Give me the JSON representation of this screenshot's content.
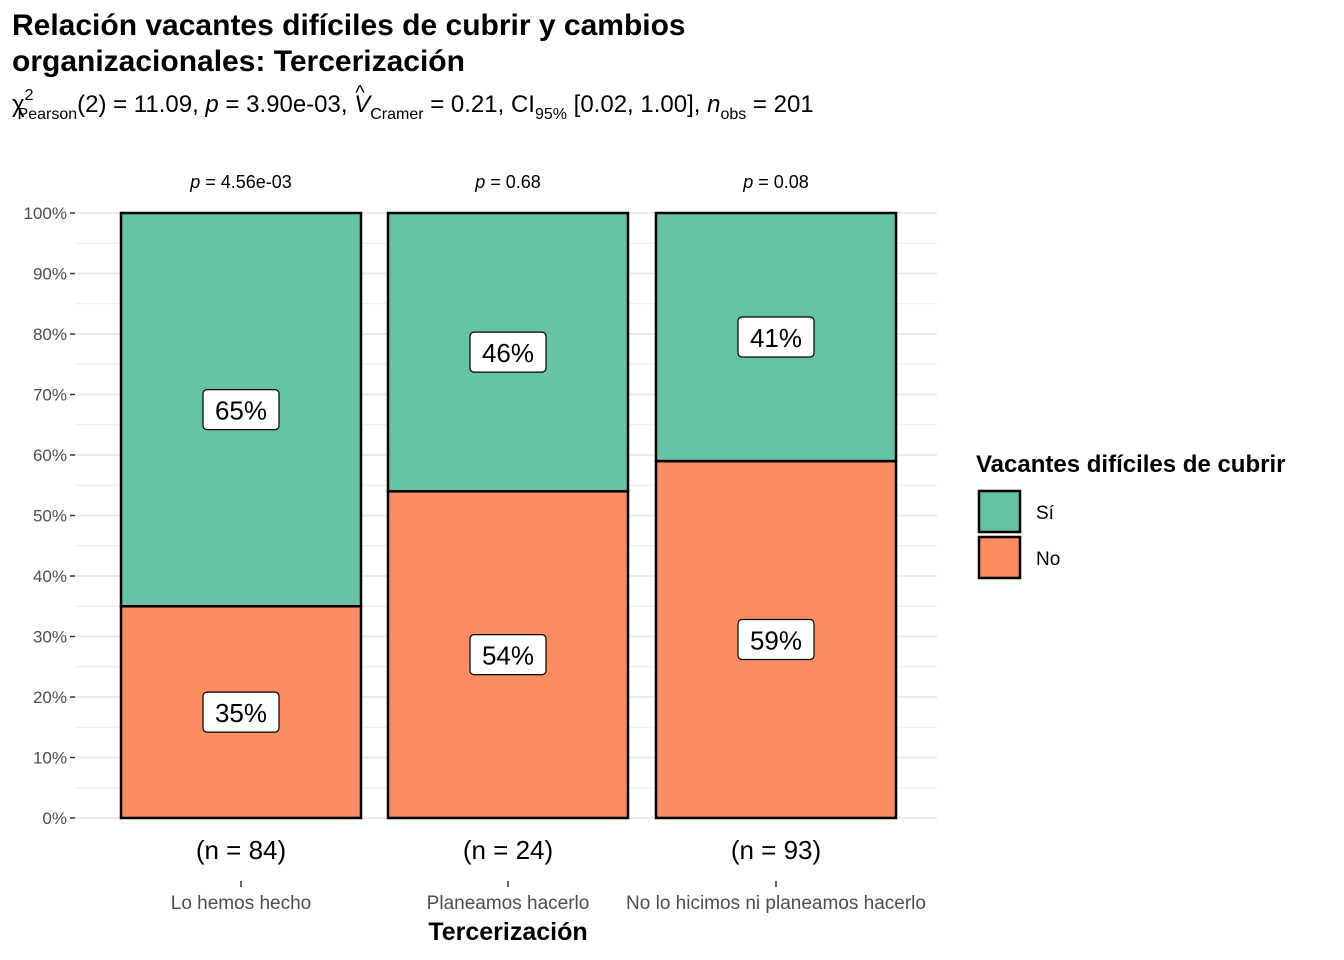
{
  "title": "Relación vacantes difíciles de cubrir y cambios organizacionales: Tercerización",
  "subtitle": {
    "chi": "χ",
    "chi_sup": "2",
    "chi_sub": "Pearson",
    "df": "(2) = 11.09, ",
    "p_label": "p",
    "p_value": " = 3.90e-03, ",
    "v_label": "V",
    "v_hat": "^",
    "v_sub": "Cramer",
    "v_value": " = 0.21, CI",
    "ci_sub": "95%",
    "ci_value": " [0.02, 1.00], ",
    "n_label": "n",
    "n_sub": "obs",
    "n_value": " = 201"
  },
  "colors": {
    "si": "#66c2a5",
    "no": "#fc8d62",
    "grid": "#ebebeb"
  },
  "chart_data": {
    "type": "bar",
    "stacked": true,
    "categories": [
      "Lo hemos hecho",
      "Planeamos hacerlo",
      "No lo hicimos ni planeamos hacerlo"
    ],
    "series": [
      {
        "name": "Sí",
        "values": [
          65,
          46,
          41
        ],
        "labels": [
          "65%",
          "46%",
          "41%"
        ]
      },
      {
        "name": "No",
        "values": [
          35,
          54,
          59
        ],
        "labels": [
          "35%",
          "54%",
          "59%"
        ]
      }
    ],
    "counts": [
      "(n = 84)",
      "(n = 24)",
      "(n = 93)"
    ],
    "p_values": [
      "4.56e-03",
      "0.68",
      "0.08"
    ],
    "p_prefix": "p",
    "p_eq": " = ",
    "xlabel": "Tercerización",
    "ylabel": "",
    "ylim": [
      0,
      100
    ],
    "yticks": [
      "0%",
      "10%",
      "20%",
      "30%",
      "40%",
      "50%",
      "60%",
      "70%",
      "80%",
      "90%",
      "100%"
    ],
    "legend": {
      "title": "Vacantes difíciles de cubrir",
      "position": "right"
    },
    "grid": true
  }
}
